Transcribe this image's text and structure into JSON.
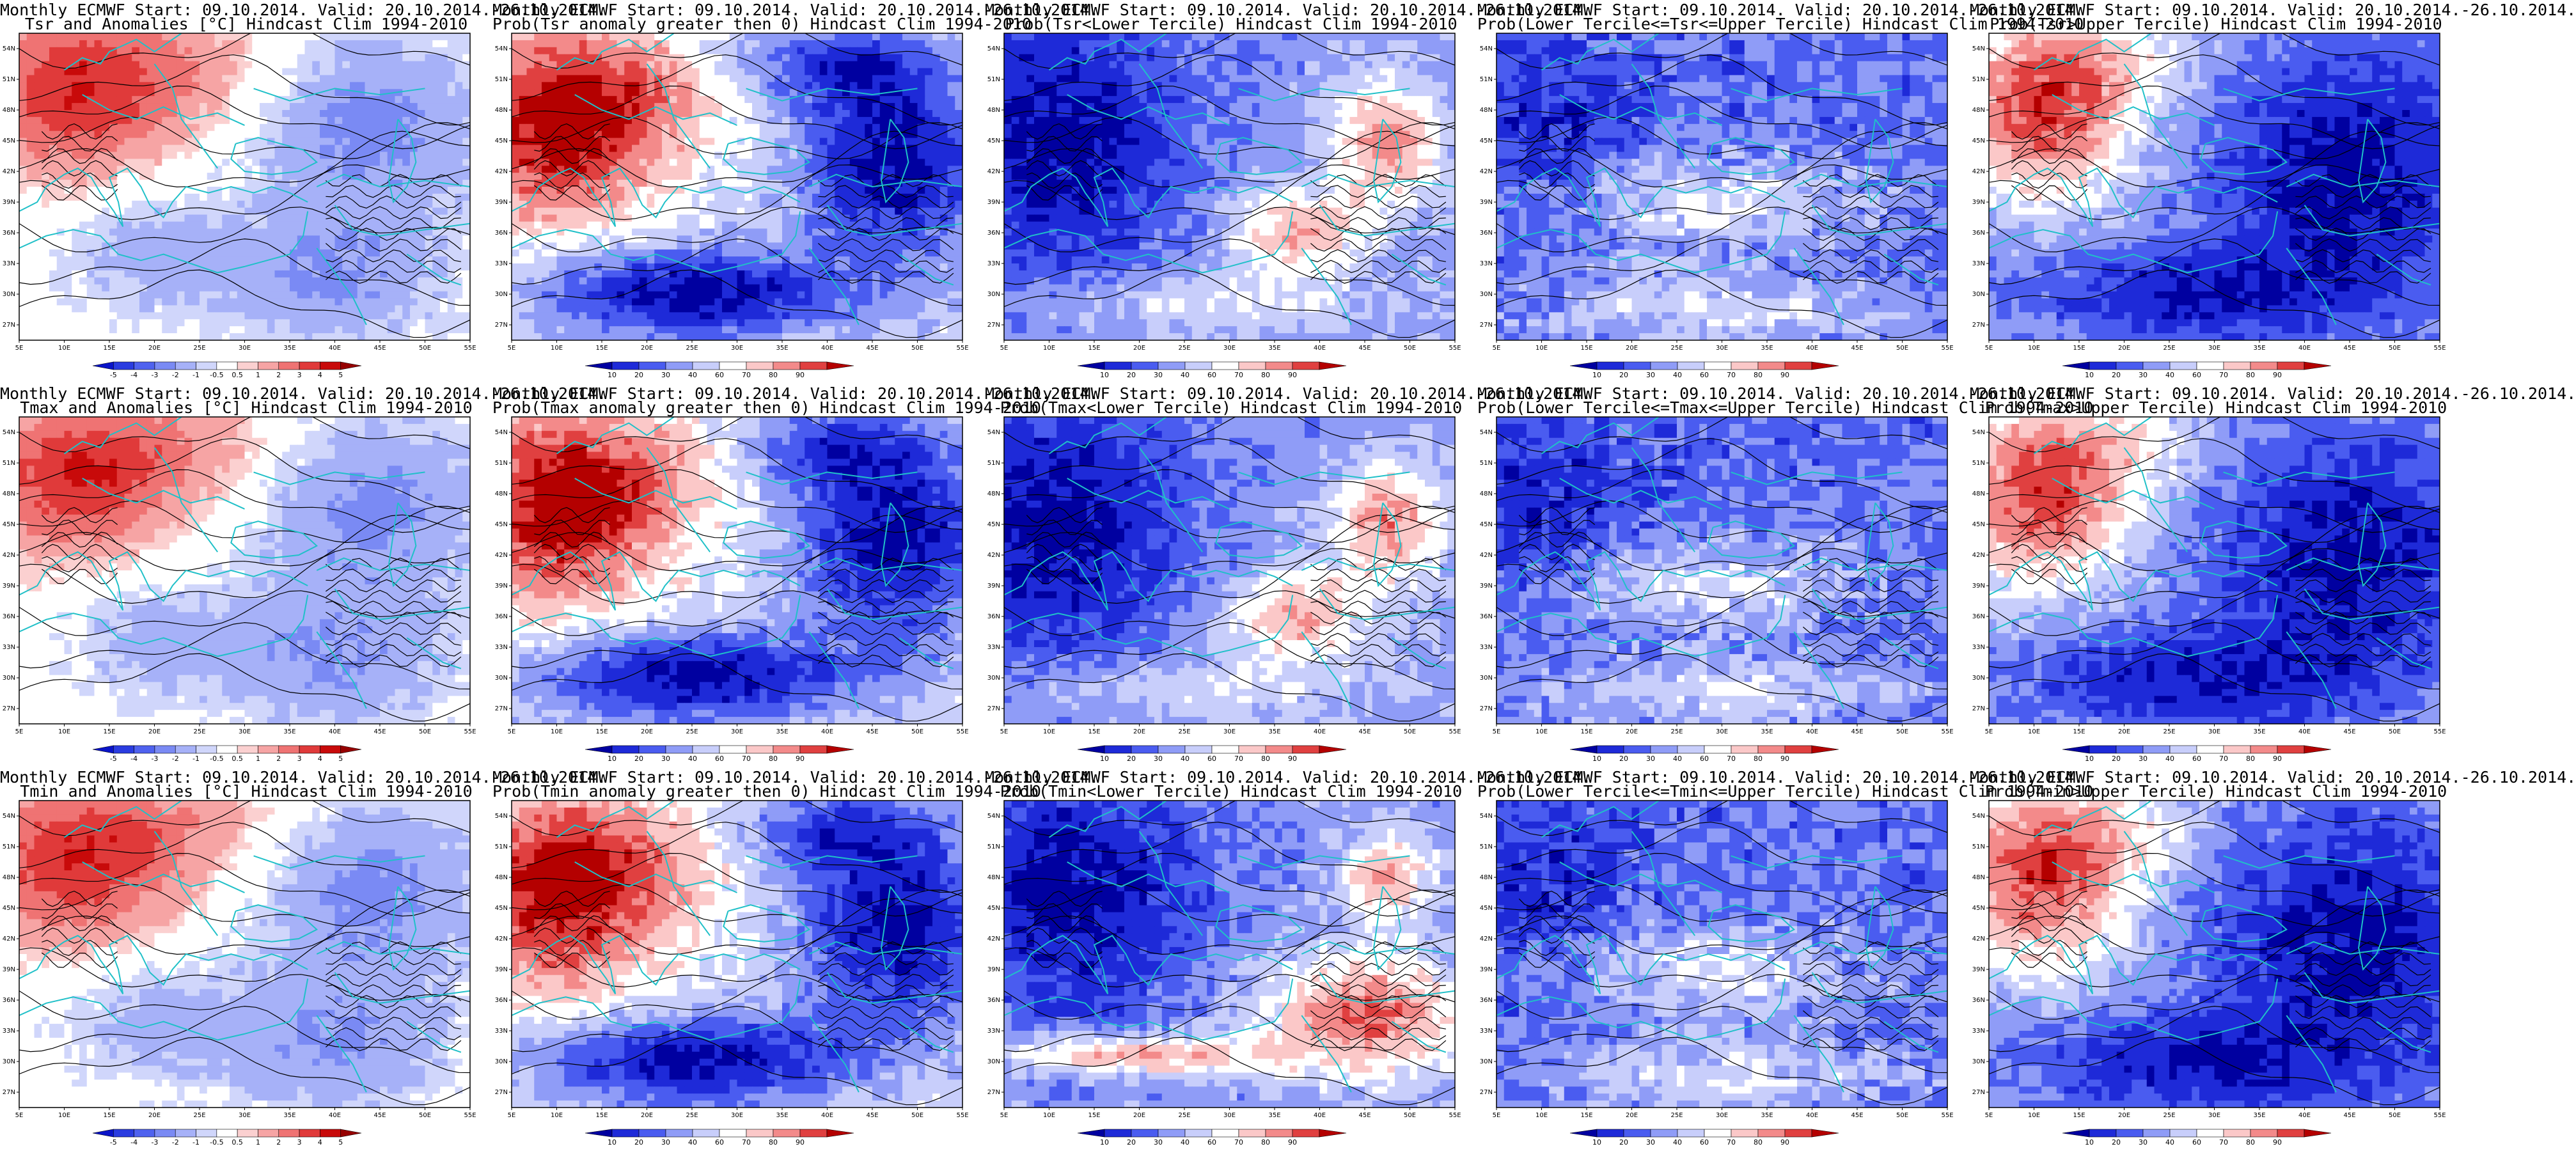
{
  "figure": {
    "panels": [
      {
        "row": 0,
        "col": 0,
        "title1": "Monthly ECMWF Start: 09.10.2014. Valid: 20.10.2014.-26.10.2014.",
        "title2": "Tsr and Anomalies [°C] Hindcast Clim 1994-2010",
        "scale": "anom",
        "pattern": "anomT"
      },
      {
        "row": 0,
        "col": 1,
        "title1": "Monthly ECMWF Start: 09.10.2014. Valid: 20.10.2014.-26.10.2014.",
        "title2": "Prob(Tsr anomaly greater then 0) Hindcast Clim 1994-2010",
        "scale": "prob",
        "pattern": "warmW"
      },
      {
        "row": 0,
        "col": 2,
        "title1": "Monthly ECMWF Start: 09.10.2014. Valid: 20.10.2014.-26.10.2014.",
        "title2": "Prob(Tsr<Lower Tercile) Hindcast Clim 1994-2010",
        "scale": "prob",
        "pattern": "coldW"
      },
      {
        "row": 0,
        "col": 3,
        "title1": "Monthly ECMWF Start: 09.10.2014. Valid: 20.10.2014.-26.10.2014.",
        "title2": "Prob(Lower Tercile<=Tsr<=Upper Tercile) Hindcast Clim 1994-2010",
        "scale": "prob",
        "pattern": "mid"
      },
      {
        "row": 0,
        "col": 4,
        "title1": "Monthly ECMWF Start: 09.10.2014. Valid: 20.10.2014.-26.10.2014.",
        "title2": "Prob(Tsr>Upper Tercile) Hindcast Clim 1994-2010",
        "scale": "prob",
        "pattern": "upperW"
      },
      {
        "row": 1,
        "col": 0,
        "title1": "Monthly ECMWF Start: 09.10.2014. Valid: 20.10.2014.-26.10.2014.",
        "title2": "Tmax and Anomalies [°C] Hindcast Clim 1994-2010",
        "scale": "anom",
        "pattern": "anomT"
      },
      {
        "row": 1,
        "col": 1,
        "title1": "Monthly ECMWF Start: 09.10.2014. Valid: 20.10.2014.-26.10.2014.",
        "title2": "Prob(Tmax anomaly greater then 0) Hindcast Clim 1994-2010",
        "scale": "prob",
        "pattern": "warmW"
      },
      {
        "row": 1,
        "col": 2,
        "title1": "Monthly ECMWF Start: 09.10.2014. Valid: 20.10.2014.-26.10.2014.",
        "title2": "Prob(Tmax<Lower Tercile) Hindcast Clim 1994-2010",
        "scale": "prob",
        "pattern": "coldW"
      },
      {
        "row": 1,
        "col": 3,
        "title1": "Monthly ECMWF Start: 09.10.2014. Valid: 20.10.2014.-26.10.2014.",
        "title2": "Prob(Lower Tercile<=Tmax<=Upper Tercile) Hindcast Clim 1994-2010",
        "scale": "prob",
        "pattern": "mid"
      },
      {
        "row": 1,
        "col": 4,
        "title1": "Monthly ECMWF Start: 09.10.2014. Valid: 20.10.2014.-26.10.2014.",
        "title2": "Prob(Tmax>Upper Tercile) Hindcast Clim 1994-2010",
        "scale": "prob",
        "pattern": "upperW"
      },
      {
        "row": 2,
        "col": 0,
        "title1": "Monthly ECMWF Start: 09.10.2014. Valid: 20.10.2014.-26.10.2014.",
        "title2": "Tmin and Anomalies [°C] Hindcast Clim 1994-2010",
        "scale": "anom",
        "pattern": "anomT"
      },
      {
        "row": 2,
        "col": 1,
        "title1": "Monthly ECMWF Start: 09.10.2014. Valid: 20.10.2014.-26.10.2014.",
        "title2": "Prob(Tmin anomaly greater then 0) Hindcast Clim 1994-2010",
        "scale": "prob",
        "pattern": "warmW"
      },
      {
        "row": 2,
        "col": 2,
        "title1": "Monthly ECMWF Start: 09.10.2014. Valid: 20.10.2014.-26.10.2014.",
        "title2": "Prob(Tmin<Lower Tercile) Hindcast Clim 1994-2010",
        "scale": "prob",
        "pattern": "coldWmin"
      },
      {
        "row": 2,
        "col": 3,
        "title1": "Monthly ECMWF Start: 09.10.2014. Valid: 20.10.2014.-26.10.2014.",
        "title2": "Prob(Lower Tercile<=Tmin<=Upper Tercile) Hindcast Clim 1994-2010",
        "scale": "prob",
        "pattern": "mid"
      },
      {
        "row": 2,
        "col": 4,
        "title1": "Monthly ECMWF Start: 09.10.2014. Valid: 20.10.2014.-26.10.2014.",
        "title2": "Prob(Tmin>Upper Tercile) Hindcast Clim 1994-2010",
        "scale": "prob",
        "pattern": "upperW"
      }
    ],
    "scales": {
      "anom": {
        "labels": [
          "-5",
          "-4",
          "-3",
          "-2",
          "-1",
          "-0.5",
          "0.5",
          "1",
          "2",
          "3",
          "4",
          "5"
        ],
        "colors": [
          "#0a14c8",
          "#2a3ce0",
          "#4f62ef",
          "#7a8af4",
          "#a6b1f8",
          "#d0d6fb",
          "#ffffff",
          "#fbd0d0",
          "#f6a4a4",
          "#ef7373",
          "#e03a3a",
          "#c80a0a",
          "#960000"
        ]
      },
      "prob": {
        "labels": [
          "10",
          "20",
          "30",
          "40",
          "60",
          "70",
          "80",
          "90"
        ],
        "colors": [
          "#0000a0",
          "#1e2ad8",
          "#4a5cf0",
          "#8f9cf7",
          "#c8cefb",
          "#ffffff",
          "#fbc8c8",
          "#f38a8a",
          "#e04040",
          "#b40000"
        ]
      }
    },
    "axes": {
      "lon_ticks": [
        "5E",
        "10E",
        "15E",
        "20E",
        "25E",
        "30E",
        "35E",
        "40E",
        "45E",
        "50E",
        "55E"
      ],
      "lat_ticks": [
        "54N",
        "51N",
        "48N",
        "45N",
        "42N",
        "39N",
        "36N",
        "33N",
        "30N",
        "27N"
      ],
      "lon_range": [
        5,
        55
      ],
      "lat_range": [
        25.5,
        55.5
      ]
    },
    "colors": {
      "coast": "#20c0c8",
      "contour": "#000000"
    }
  }
}
